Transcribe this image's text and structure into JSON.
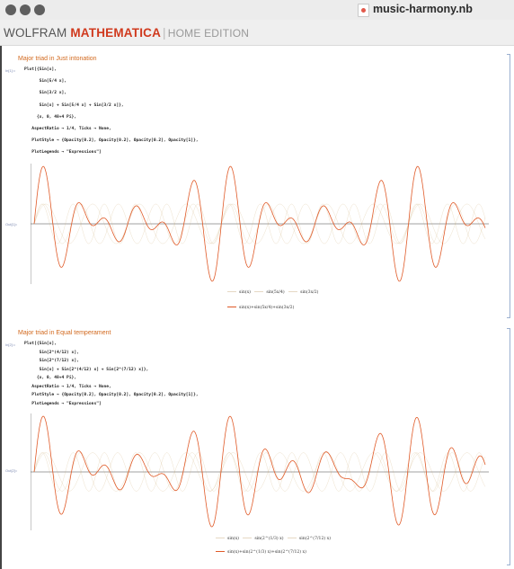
{
  "window": {
    "title": "music-harmony.nb",
    "brand": {
      "wolfram": "WOLFRAM",
      "mathematica": "MATHEMATICA",
      "edition": "HOME EDITION"
    }
  },
  "cells": {
    "in_label": "In[1]:=",
    "out_label": "Out[1]=",
    "in_label_2": "In[2]:=",
    "out_label_2": "Out[2]=",
    "just": {
      "title": "Major triad in Just intonation",
      "code": [
        "Plot[{Sin[x],",
        "      Sin[5/4 x],",
        "      Sin[3/2 x],",
        "      Sin[x] + Sin[5/4 x] + Sin[3/2 x]},",
        "     {x, 0, 48+4 Pi},",
        "   AspectRatio → 1/4, Ticks → None,",
        "   PlotStyle → {Opacity[0.2], Opacity[0.2], Opacity[0.2], Opacity[1]},",
        "   PlotLegends → \"Expressions\"]"
      ],
      "legend": [
        "sin(x)",
        "sin(5x/4)",
        "sin(3x/2)",
        "sin(x)+sin(5x/4)+sin(3x/2)"
      ]
    },
    "equal": {
      "title": "Major triad in Equal temperament",
      "code": [
        "Plot[{Sin[x],",
        "      Sin[2^(4/12) x],",
        "      Sin[2^(7/12) x],",
        "      Sin[x] + Sin[2^(4/12) x] + Sin[2^(7/12) x]},",
        "     {x, 0, 48+4 Pi},",
        "   AspectRatio → 1/4, Ticks → None,",
        "   PlotStyle → {Opacity[0.2], Opacity[0.2], Opacity[0.2], Opacity[1]},",
        "   PlotLegends → \"Expressions\"]"
      ],
      "legend": [
        "sin(x)",
        "sin(2^(1/3) x)",
        "sin(2^(7/12) x)",
        "sin(x)+sin(2^(1/3) x)+sin(2^(7/12) x)"
      ]
    }
  },
  "colors": {
    "accent": "#d2691e",
    "curve": "#e05a28",
    "faint": "#e6d8c4",
    "brand_red": "#d03a1e"
  },
  "chart_data": [
    {
      "type": "line",
      "title": "",
      "xlim": [
        0,
        60.566
      ],
      "ylim": [
        -3,
        3
      ],
      "ticks": "none",
      "series": [
        {
          "name": "sin(x)",
          "ratio": 1,
          "opacity": 0.2
        },
        {
          "name": "sin(5x/4)",
          "ratio": 1.25,
          "opacity": 0.2
        },
        {
          "name": "sin(3x/2)",
          "ratio": 1.5,
          "opacity": 0.2
        },
        {
          "name": "sin(x)+sin(5x/4)+sin(3x/2)",
          "ratios": [
            1,
            1.25,
            1.5
          ],
          "opacity": 1
        }
      ]
    },
    {
      "type": "line",
      "title": "",
      "xlim": [
        0,
        60.566
      ],
      "ylim": [
        -3,
        3
      ],
      "ticks": "none",
      "series": [
        {
          "name": "sin(x)",
          "ratio": 1,
          "opacity": 0.2
        },
        {
          "name": "sin(2^(1/3) x)",
          "ratio": 1.259921,
          "opacity": 0.2
        },
        {
          "name": "sin(2^(7/12) x)",
          "ratio": 1.498307,
          "opacity": 0.2
        },
        {
          "name": "sin(x)+sin(2^(1/3) x)+sin(2^(7/12) x)",
          "ratios": [
            1,
            1.259921,
            1.498307
          ],
          "opacity": 1
        }
      ]
    }
  ]
}
